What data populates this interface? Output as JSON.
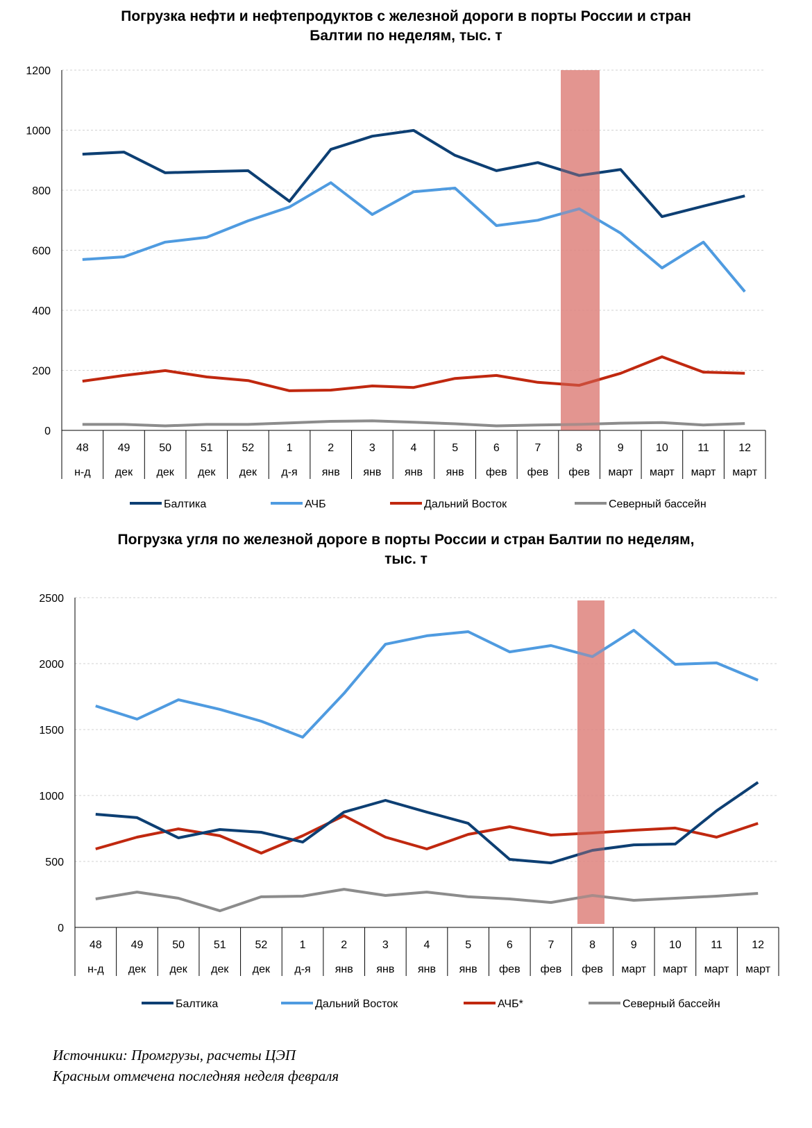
{
  "chart_data": [
    {
      "type": "line",
      "title_line1": "Погрузка нефти и нефтепродуктов с железной дороги в порты России и стран",
      "title_line2": "Балтии по неделям, тыс. т",
      "categories": [
        "48",
        "49",
        "50",
        "51",
        "52",
        "1",
        "2",
        "3",
        "4",
        "5",
        "6",
        "7",
        "8",
        "9",
        "10",
        "11",
        "12"
      ],
      "sublabels": [
        "н-д",
        "дек",
        "дек",
        "дек",
        "дек",
        "д-я",
        "янв",
        "янв",
        "янв",
        "янв",
        "фев",
        "фев",
        "фев",
        "март",
        "март",
        "март",
        "март"
      ],
      "ylim": [
        0,
        1200
      ],
      "yticks": [
        0,
        200,
        400,
        600,
        800,
        1000,
        1200
      ],
      "grid": true,
      "highlight_category": "8",
      "highlight_color": "#e08a85",
      "legend_position": "bottom",
      "series": [
        {
          "name": "Балтика",
          "color": "#0d3f73",
          "values": [
            920,
            927,
            858,
            862,
            865,
            763,
            936,
            980,
            999,
            916,
            865,
            892,
            849,
            869,
            712,
            747,
            781
          ]
        },
        {
          "name": "АЧБ",
          "color": "#4f9be0",
          "values": [
            569,
            578,
            627,
            643,
            698,
            744,
            825,
            719,
            795,
            807,
            682,
            700,
            738,
            657,
            541,
            627,
            462
          ]
        },
        {
          "name": "Дальний Восток",
          "color": "#c0280f",
          "values": [
            164,
            183,
            199,
            178,
            166,
            132,
            134,
            148,
            143,
            173,
            183,
            160,
            150,
            190,
            245,
            194,
            190
          ]
        },
        {
          "name": "Северный бассейн",
          "color": "#8c8c8c",
          "values": [
            20,
            20,
            15,
            20,
            20,
            25,
            30,
            32,
            27,
            22,
            15,
            18,
            20,
            24,
            26,
            18,
            23
          ]
        }
      ]
    },
    {
      "type": "line",
      "title_line1": "Погрузка угля по железной дороге в порты России и стран Балтии по неделям,",
      "title_line2": "тыс. т",
      "categories": [
        "48",
        "49",
        "50",
        "51",
        "52",
        "1",
        "2",
        "3",
        "4",
        "5",
        "6",
        "7",
        "8",
        "9",
        "10",
        "11",
        "12"
      ],
      "sublabels": [
        "н-д",
        "дек",
        "дек",
        "дек",
        "дек",
        "д-я",
        "янв",
        "янв",
        "янв",
        "янв",
        "фев",
        "фев",
        "фев",
        "март",
        "март",
        "март",
        "март"
      ],
      "ylim": [
        0,
        2500
      ],
      "yticks": [
        0,
        500,
        1000,
        1500,
        2000,
        2500
      ],
      "grid": true,
      "highlight_category": "8",
      "highlight_color": "#e08a85",
      "legend_position": "bottom",
      "series": [
        {
          "name": "Балтика",
          "color": "#0d3f73",
          "values": [
            858,
            832,
            679,
            742,
            721,
            647,
            874,
            963,
            874,
            789,
            516,
            489,
            584,
            626,
            632,
            884,
            1100
          ]
        },
        {
          "name": "Дальний Восток",
          "color": "#4f9be0",
          "values": [
            1679,
            1579,
            1726,
            1653,
            1563,
            1442,
            1774,
            2147,
            2211,
            2242,
            2089,
            2137,
            2053,
            2253,
            1995,
            2005,
            1874
          ]
        },
        {
          "name": "АЧБ*",
          "color": "#c0280f",
          "values": [
            595,
            684,
            747,
            695,
            563,
            695,
            847,
            684,
            595,
            705,
            763,
            700,
            716,
            737,
            753,
            684,
            789
          ]
        },
        {
          "name": "Северный бассейн",
          "color": "#8c8c8c",
          "values": [
            216,
            268,
            221,
            126,
            232,
            237,
            289,
            242,
            268,
            232,
            216,
            189,
            242,
            205,
            221,
            237,
            258
          ]
        }
      ]
    }
  ],
  "footer": {
    "source": "Источники: Промгрузы, расчеты ЦЭП",
    "note": "Красным отмечена последняя неделя февраля"
  }
}
